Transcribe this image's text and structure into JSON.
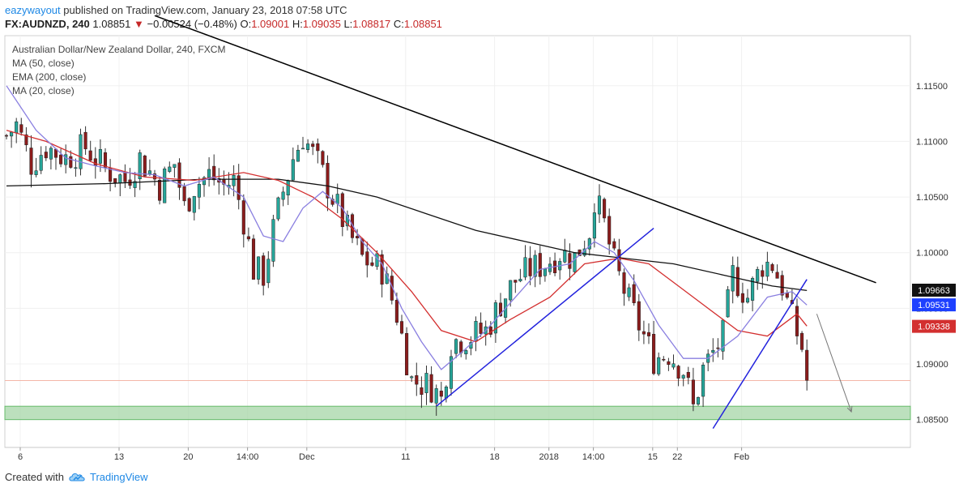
{
  "header": {
    "author": "eazywayout",
    "published_text": "published on TradingView.com, January 23, 2018 07:58 UTC",
    "symbol": "FX:AUDNZD",
    "interval": "240",
    "last": "1.08851",
    "change_arrow": "▼",
    "change": "−0.00524 (−0.48%)",
    "o_label": "O:",
    "o": "1.09001",
    "h_label": "H:",
    "h": "1.09035",
    "l_label": "L:",
    "l": "1.08817",
    "c_label": "C:",
    "c": "1.08851"
  },
  "legend": {
    "title": "Australian Dollar/New Zealand Dollar, 240, FXCM",
    "items": [
      "MA (50, close)",
      "EMA (200, close)",
      "MA (20, close)"
    ]
  },
  "footer": {
    "created_with": "Created with",
    "brand": "TradingView"
  },
  "colors": {
    "up": "#26a69a",
    "down": "#8b1c1c",
    "ma20": "#8a7fe0",
    "ma50": "#d32f2f",
    "ema200": "#111111",
    "trend": "#2222dd",
    "zone": "#a5d6a7"
  },
  "chart_data": {
    "type": "candlestick",
    "title": "Australian Dollar/New Zealand Dollar, 240, FXCM",
    "ylim": [
      1.0825,
      1.1195
    ],
    "y_ticks": [
      "1.11500",
      "1.11000",
      "1.10500",
      "1.10000",
      "1.09500",
      "1.09000",
      "1.08500"
    ],
    "x_tick_labels": [
      "6",
      "13",
      "20",
      "14:00",
      "Dec",
      "11",
      "18",
      "2018",
      "14:00",
      "15",
      "22",
      "Feb"
    ],
    "price_labels": [
      {
        "value": "1.09663",
        "color": "#111111"
      },
      {
        "value": "1.09531",
        "color": "#1e40ff"
      },
      {
        "value": "1.09338",
        "color": "#d32f2f"
      }
    ],
    "anchors_x": [
      0,
      20,
      34,
      46,
      58,
      78,
      96,
      107,
      116,
      128,
      133,
      146
    ],
    "price_path": [
      [
        0,
        1.1105
      ],
      [
        2,
        1.1115
      ],
      [
        5,
        1.108
      ],
      [
        8,
        1.1095
      ],
      [
        12,
        1.1085
      ],
      [
        16,
        1.1095
      ],
      [
        20,
        1.1075
      ],
      [
        24,
        1.1065
      ],
      [
        27,
        1.1085
      ],
      [
        31,
        1.106
      ],
      [
        34,
        1.108
      ],
      [
        36,
        1.104
      ],
      [
        38,
        1.106
      ],
      [
        41,
        1.107
      ],
      [
        44,
        1.106
      ],
      [
        46,
        1.1065
      ],
      [
        48,
        1.103
      ],
      [
        50,
        1.0985
      ],
      [
        52,
        1.098
      ],
      [
        54,
        1.102
      ],
      [
        56,
        1.1055
      ],
      [
        58,
        1.1085
      ],
      [
        60,
        1.1105
      ],
      [
        63,
        1.108
      ],
      [
        66,
        1.105
      ],
      [
        69,
        1.102
      ],
      [
        72,
        1.0995
      ],
      [
        76,
        1.0985
      ],
      [
        79,
        1.0945
      ],
      [
        82,
        1.0885
      ],
      [
        86,
        1.088
      ],
      [
        88,
        1.0868
      ],
      [
        90,
        1.092
      ],
      [
        94,
        1.0925
      ],
      [
        97,
        1.093
      ],
      [
        100,
        1.0955
      ],
      [
        103,
        1.0975
      ],
      [
        106,
        1.0985
      ],
      [
        109,
        1.099
      ],
      [
        112,
        1.1
      ],
      [
        115,
        1.0995
      ],
      [
        118,
        1.102
      ],
      [
        119,
        1.105
      ],
      [
        121,
        1.1025
      ],
      [
        123,
        1.099
      ],
      [
        126,
        1.0955
      ],
      [
        129,
        1.0925
      ],
      [
        131,
        1.0905
      ],
      [
        134,
        1.091
      ],
      [
        137,
        1.0895
      ],
      [
        139,
        1.086
      ],
      [
        141,
        1.0895
      ],
      [
        143,
        1.091
      ],
      [
        145,
        1.0925
      ],
      [
        147,
        1.098
      ],
      [
        150,
        1.096
      ],
      [
        153,
        1.099
      ],
      [
        155,
        1.099
      ],
      [
        157,
        1.097
      ],
      [
        159,
        1.094
      ],
      [
        161,
        1.0915
      ],
      [
        162,
        1.0885
      ]
    ],
    "ema200_path": [
      [
        0,
        1.106
      ],
      [
        20,
        1.1062
      ],
      [
        40,
        1.1066
      ],
      [
        55,
        1.1066
      ],
      [
        65,
        1.106
      ],
      [
        75,
        1.105
      ],
      [
        85,
        1.1035
      ],
      [
        95,
        1.102
      ],
      [
        105,
        1.101
      ],
      [
        115,
        1.1
      ],
      [
        125,
        1.0995
      ],
      [
        135,
        1.099
      ],
      [
        145,
        1.098
      ],
      [
        155,
        1.097
      ],
      [
        162,
        1.0966
      ]
    ],
    "ma50_path": [
      [
        0,
        1.111
      ],
      [
        8,
        1.11
      ],
      [
        18,
        1.108
      ],
      [
        28,
        1.1068
      ],
      [
        38,
        1.1065
      ],
      [
        48,
        1.1072
      ],
      [
        55,
        1.1065
      ],
      [
        62,
        1.105
      ],
      [
        68,
        1.103
      ],
      [
        75,
        1.1
      ],
      [
        82,
        1.0965
      ],
      [
        88,
        1.093
      ],
      [
        95,
        1.092
      ],
      [
        102,
        1.094
      ],
      [
        110,
        1.096
      ],
      [
        117,
        1.099
      ],
      [
        124,
        1.0995
      ],
      [
        130,
        1.099
      ],
      [
        136,
        1.097
      ],
      [
        142,
        1.095
      ],
      [
        148,
        1.093
      ],
      [
        154,
        1.0925
      ],
      [
        160,
        1.0945
      ],
      [
        162,
        1.0934
      ]
    ],
    "ma20_path": [
      [
        0,
        1.115
      ],
      [
        6,
        1.111
      ],
      [
        12,
        1.1085
      ],
      [
        18,
        1.1078
      ],
      [
        24,
        1.1072
      ],
      [
        30,
        1.107
      ],
      [
        36,
        1.106
      ],
      [
        42,
        1.1068
      ],
      [
        48,
        1.105
      ],
      [
        52,
        1.1015
      ],
      [
        56,
        1.101
      ],
      [
        60,
        1.104
      ],
      [
        64,
        1.1055
      ],
      [
        68,
        1.104
      ],
      [
        72,
        1.101
      ],
      [
        76,
        1.099
      ],
      [
        80,
        1.095
      ],
      [
        84,
        1.092
      ],
      [
        88,
        1.0895
      ],
      [
        92,
        1.091
      ],
      [
        97,
        1.093
      ],
      [
        102,
        1.0955
      ],
      [
        108,
        1.0985
      ],
      [
        114,
        1.099
      ],
      [
        119,
        1.101
      ],
      [
        123,
        1.1
      ],
      [
        127,
        1.0975
      ],
      [
        132,
        1.0935
      ],
      [
        137,
        1.0905
      ],
      [
        142,
        1.0905
      ],
      [
        148,
        1.0925
      ],
      [
        154,
        1.096
      ],
      [
        159,
        1.0965
      ],
      [
        162,
        1.0953
      ]
    ],
    "trendlines": [
      {
        "name": "descending-resistance",
        "color": "#000000",
        "from": [
          30,
          1.1213
        ],
        "to": [
          176,
          1.0973
        ]
      },
      {
        "name": "rising-support-1",
        "color": "#2222dd",
        "from": [
          87,
          1.0862
        ],
        "to": [
          131,
          1.1022
        ]
      },
      {
        "name": "rising-support-2",
        "color": "#2222dd",
        "from": [
          143,
          1.0842
        ],
        "to": [
          162,
          1.0976
        ]
      }
    ],
    "arrow": {
      "from": [
        164,
        1.0945
      ],
      "to": [
        171,
        1.0857
      ],
      "color": "#777777"
    },
    "support_zone": [
      1.085,
      1.0862
    ]
  }
}
